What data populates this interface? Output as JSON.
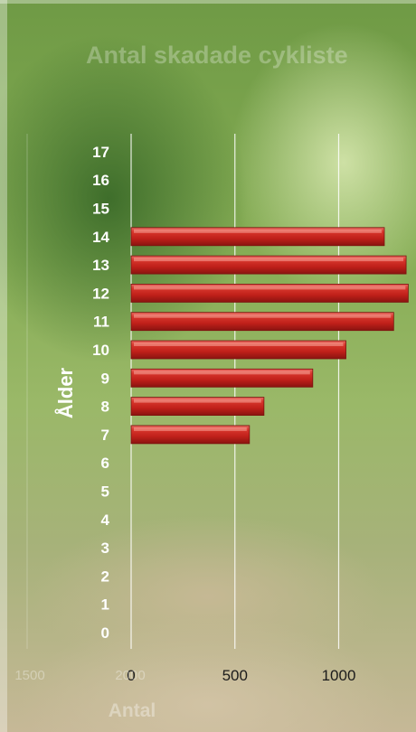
{
  "chart_data": {
    "type": "bar",
    "orientation": "horizontal",
    "title": "Antal skadade cykliste",
    "xlabel": "Antal",
    "ylabel": "Ålder",
    "categories": [
      "0",
      "1",
      "2",
      "3",
      "4",
      "5",
      "6",
      "7",
      "8",
      "9",
      "10",
      "11",
      "12",
      "13",
      "14",
      "15",
      "16",
      "17"
    ],
    "values": [
      0,
      0,
      0,
      0,
      0,
      0,
      0,
      570,
      640,
      875,
      1035,
      1265,
      1335,
      1325,
      1220,
      0,
      0,
      0
    ],
    "x_ticks_visible": [
      "0",
      "500",
      "1000"
    ],
    "x_ticks_faint": [
      "1500",
      "2000"
    ],
    "xlim": [
      0,
      1350
    ],
    "grid": true,
    "legend": "none",
    "bar_color": "#c0201a"
  }
}
